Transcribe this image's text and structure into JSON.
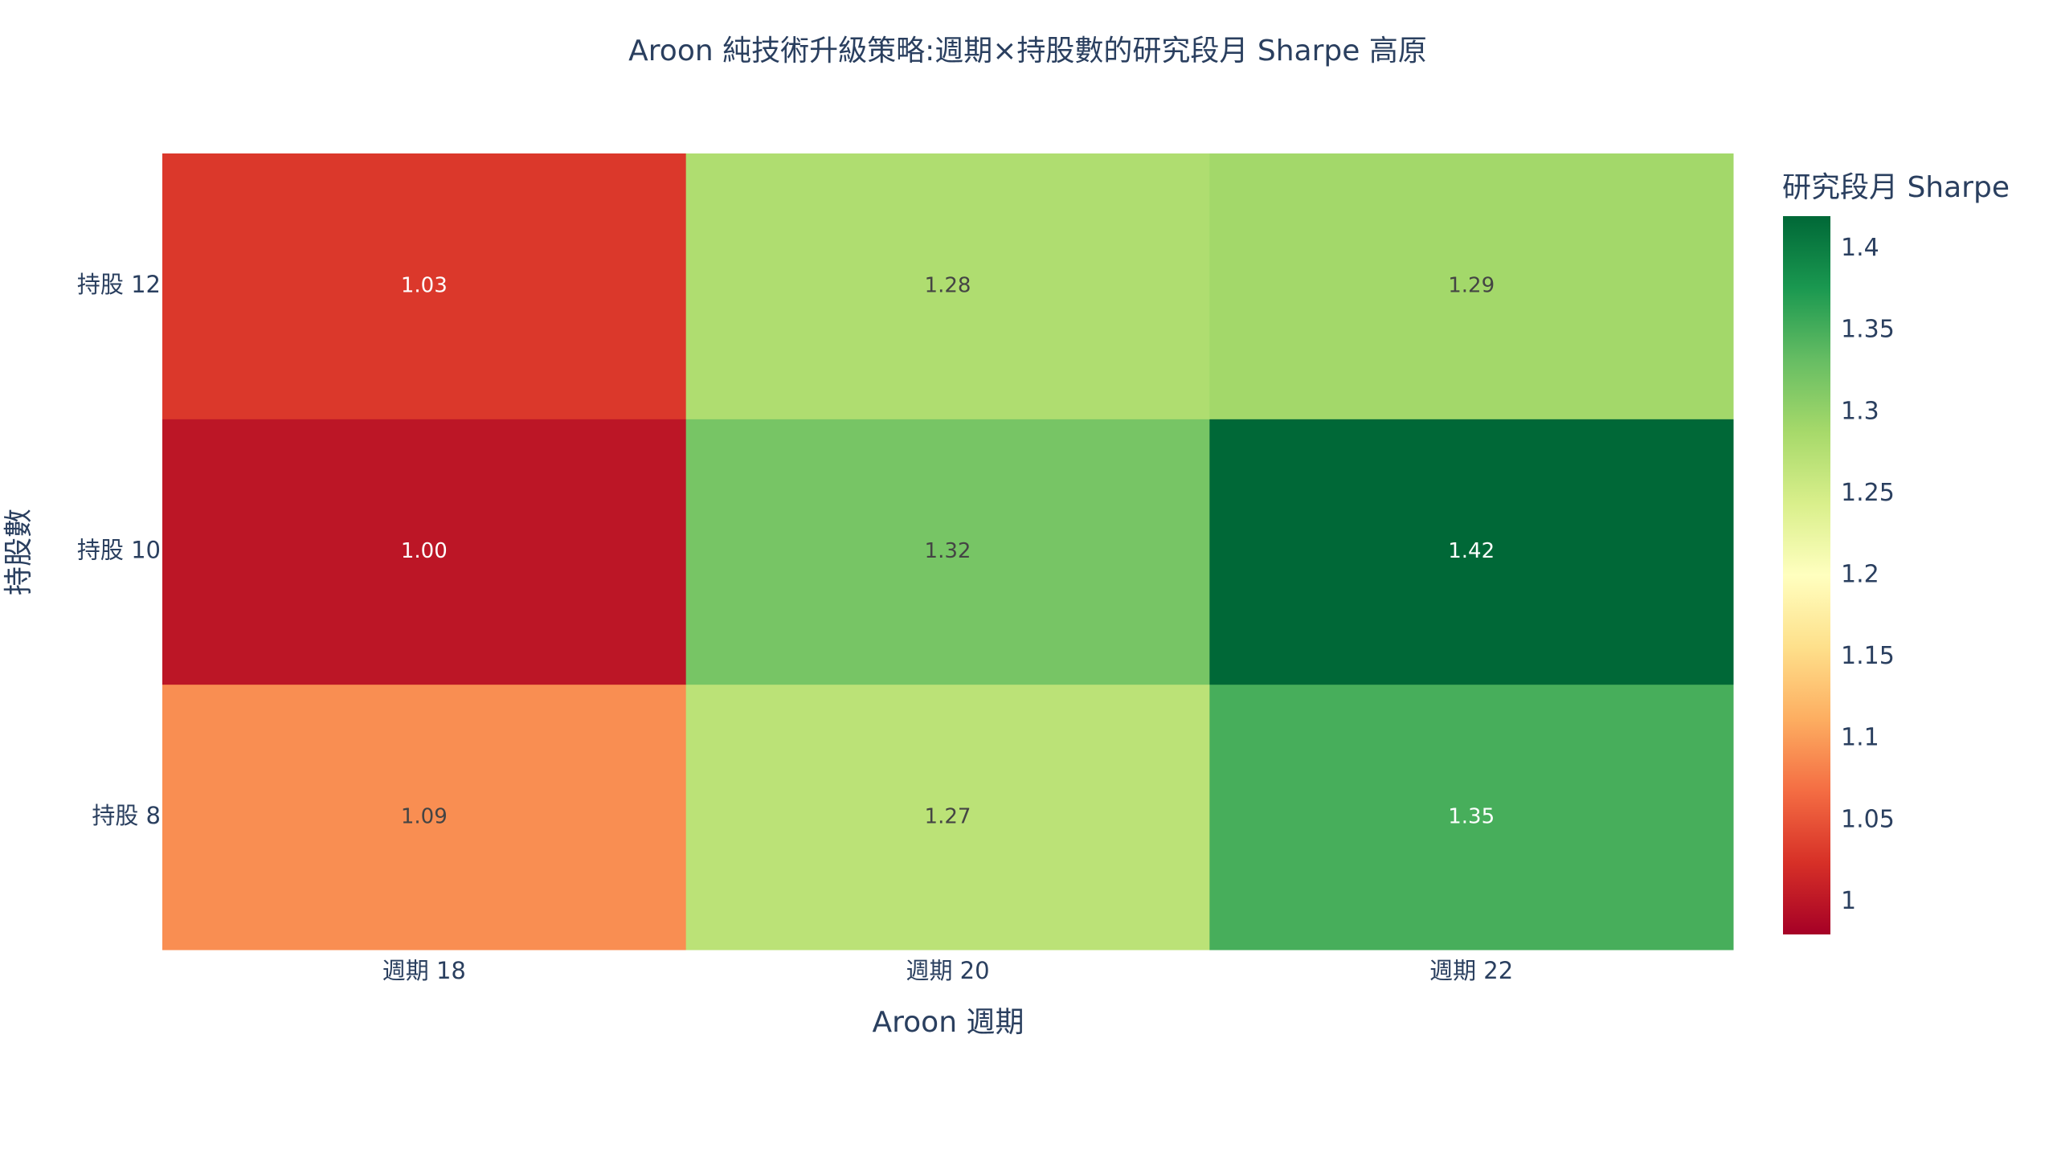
{
  "chart_data": {
    "type": "heatmap",
    "title": "Aroon 純技術升級策略:週期×持股數的研究段月 Sharpe 高原",
    "x_label": "Aroon 週期",
    "y_label": "持股數",
    "categories": [
      "週期 18",
      "週期 20",
      "週期 22"
    ],
    "rows": [
      "持股 8",
      "持股 10",
      "持股 12"
    ],
    "values": [
      [
        1.09,
        1.27,
        1.35
      ],
      [
        1.0,
        1.32,
        1.42
      ],
      [
        1.03,
        1.28,
        1.29
      ]
    ],
    "value_labels": [
      [
        "1.09",
        "1.27",
        "1.35"
      ],
      [
        "1.00",
        "1.32",
        "1.42"
      ],
      [
        "1.03",
        "1.28",
        "1.29"
      ]
    ],
    "colorbar_title": "研究段月 Sharpe",
    "zlim": [
      0.98,
      1.42
    ],
    "zticks": [
      1,
      1.05,
      1.1,
      1.15,
      1.2,
      1.25,
      1.3,
      1.35,
      1.4
    ],
    "colorscale": [
      "#a50026",
      "#d73027",
      "#f46d43",
      "#fdae61",
      "#fee08b",
      "#ffffbf",
      "#d9ef8b",
      "#a6d96a",
      "#66bd63",
      "#1a9850",
      "#006837"
    ]
  }
}
